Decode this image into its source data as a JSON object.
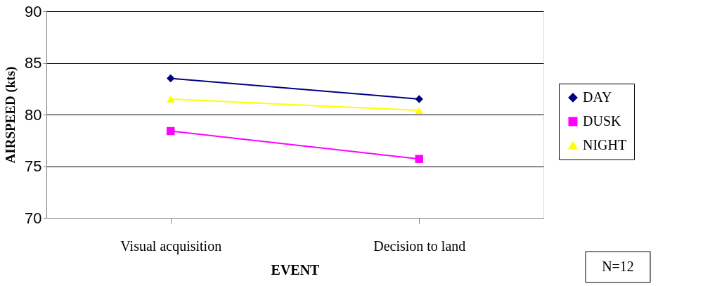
{
  "chart_data": {
    "type": "line",
    "xlabel": "EVENT",
    "ylabel": "AIRSPEED (kts)",
    "categories": [
      "Visual acquisition",
      "Decision to land"
    ],
    "series": [
      {
        "name": "DAY",
        "color": "#000080",
        "marker": "diamond",
        "values": [
          83.5,
          81.5
        ]
      },
      {
        "name": "DUSK",
        "color": "#ff00ff",
        "marker": "square",
        "values": [
          78.4,
          75.7
        ]
      },
      {
        "name": "NIGHT",
        "color": "#ffff00",
        "marker": "triangle",
        "values": [
          81.5,
          80.4
        ]
      }
    ],
    "ylim": [
      70,
      90
    ],
    "yticks": [
      70,
      75,
      80,
      85,
      90
    ],
    "grid": "y",
    "legend": "right",
    "annotations": [
      "N=12"
    ]
  }
}
